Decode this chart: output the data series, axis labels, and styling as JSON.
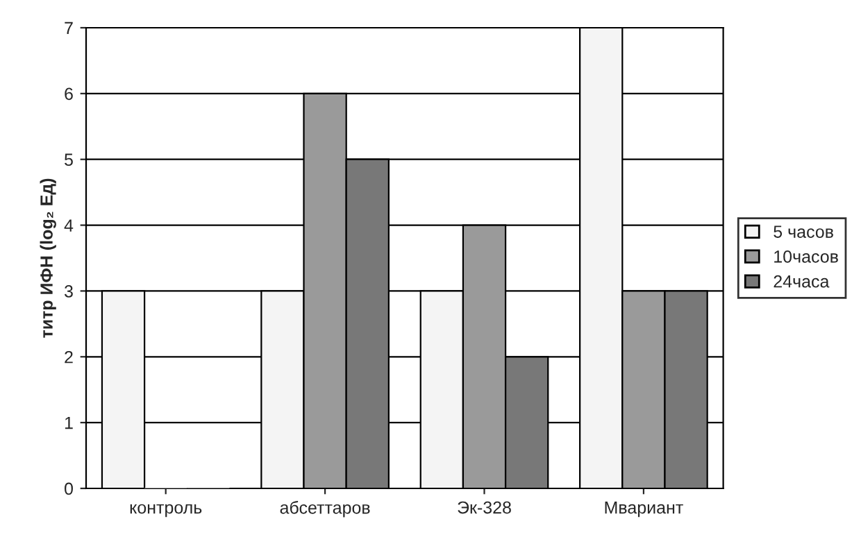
{
  "chart_data": {
    "type": "bar",
    "ylabel": "титр ИФН (log₂ Ед)",
    "categories": [
      "контроль",
      "абсеттаров",
      "Эк-328",
      "Мвариант"
    ],
    "series": [
      {
        "name": "5 часов",
        "color": "#f4f4f4",
        "values": [
          3,
          3,
          3,
          7
        ]
      },
      {
        "name": "10часов",
        "color": "#9a9a9a",
        "values": [
          0,
          6,
          4,
          3
        ]
      },
      {
        "name": "24часа",
        "color": "#787878",
        "values": [
          0,
          5,
          2,
          3
        ]
      }
    ],
    "ylim": [
      0,
      7
    ],
    "yticks": [
      0,
      1,
      2,
      3,
      4,
      5,
      6,
      7
    ],
    "grid": "y",
    "legend": "right"
  }
}
